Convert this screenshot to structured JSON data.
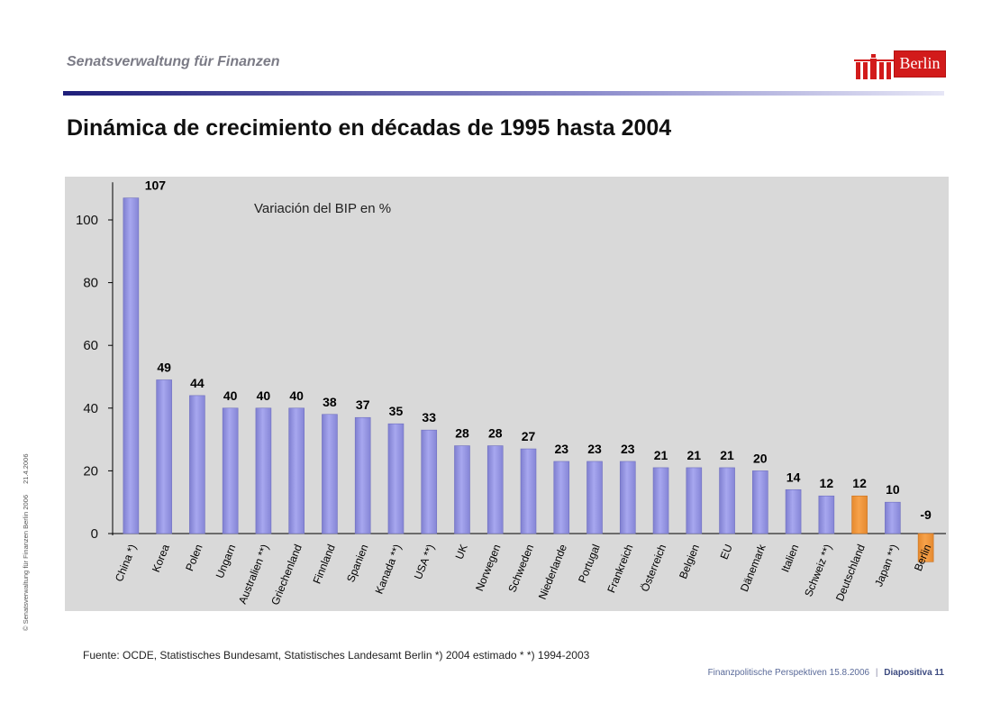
{
  "header": {
    "agency": "Senatsverwaltung für Finanzen",
    "title": "Dinámica de crecimiento en décadas de 1995 hasta 2004",
    "logo_text": "Berlin"
  },
  "side_note": {
    "text": "© Senatsverwaltung für Finanzen Berlin 2006",
    "date": "21.4.2006"
  },
  "chart_data": {
    "type": "bar",
    "title": "Variación del BIP en %",
    "xlabel": "",
    "ylabel": "",
    "ylim": [
      -12,
      112
    ],
    "yticks": [
      0,
      20,
      40,
      60,
      80,
      100
    ],
    "grid": false,
    "categories": [
      "China *)",
      "Korea",
      "Polen",
      "Ungarn",
      "Australien **)",
      "Griechenland",
      "Finnland",
      "Spanien",
      "Kanada **)",
      "USA **)",
      "UK",
      "Norwegen",
      "Schweden",
      "Niederlande",
      "Portugal",
      "Frankreich",
      "Österreich",
      "Belgien",
      "EU",
      "Dänemark",
      "Italien",
      "Schweiz **)",
      "Deutschland",
      "Japan **)",
      "Berlin"
    ],
    "values": [
      107,
      49,
      44,
      40,
      40,
      40,
      38,
      37,
      35,
      33,
      28,
      28,
      27,
      23,
      23,
      23,
      21,
      21,
      21,
      20,
      14,
      12,
      12,
      10,
      -9
    ],
    "highlight": [
      "Deutschland",
      "Berlin"
    ],
    "colors": {
      "bar": "#a7a7ef",
      "bar_highlight": "#f7a24a",
      "background": "#d9d9d9",
      "axis": "#000000"
    }
  },
  "source": "Fuente: OCDE, Statistisches Bundesamt, Statistisches Landesamt Berlin   *) 2004 estimado    * *) 1994-2003",
  "footer": {
    "doc": "Finanzpolitische Perspektiven 15.8.2006",
    "separator": "|",
    "slide": "Diapositiva 11"
  }
}
